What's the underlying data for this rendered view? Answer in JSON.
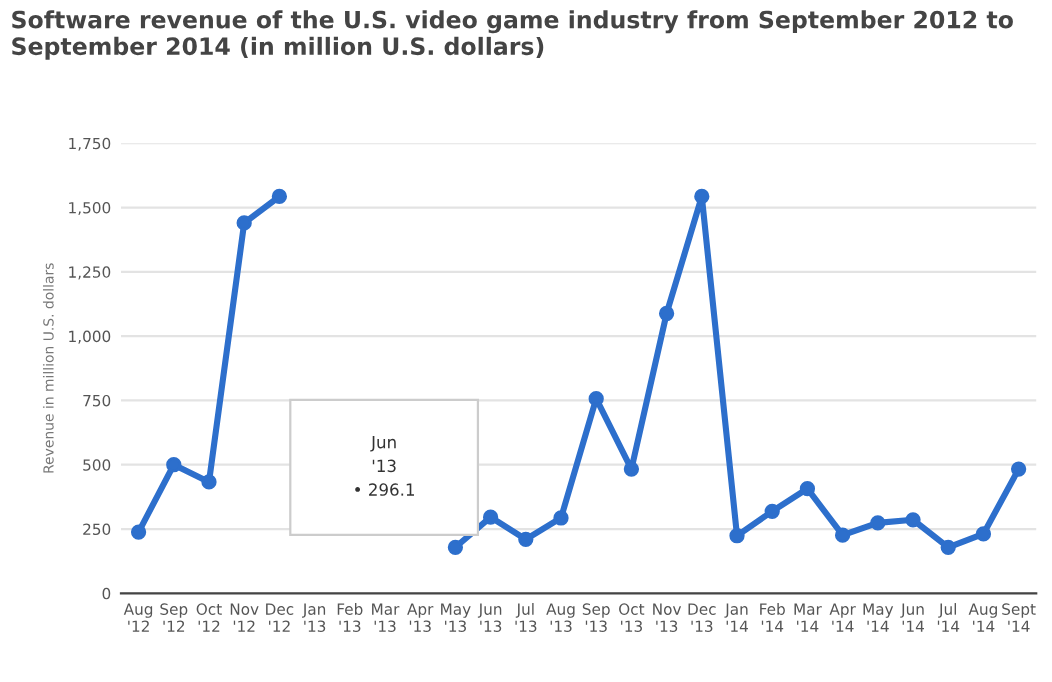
{
  "chart_data": {
    "type": "line",
    "title": "Software revenue of the U.S. video game industry from September 2012 to September 2014 (in million U.S. dollars)",
    "ylabel": "Revenue in million U.S. dollars",
    "categories": [
      "Aug\n'12",
      "Sep\n'12",
      "Oct\n'12",
      "Nov\n'12",
      "Dec\n'12",
      "Jan\n'13",
      "Feb\n'13",
      "Mar\n'13",
      "Apr\n'13",
      "May\n'13",
      "Jun\n'13",
      "Jul\n'13",
      "Aug\n'13",
      "Sep\n'13",
      "Oct\n'13",
      "Nov\n'13",
      "Dec\n'13",
      "Jan\n'14",
      "Feb\n'14",
      "Mar\n'14",
      "Apr\n'14",
      "May\n'14",
      "Jun\n'14",
      "Jul\n'14",
      "Aug\n'14",
      "Sept\n'14"
    ],
    "series": [
      {
        "color": "#2d6fcc",
        "values": [
          238,
          500,
          433,
          1440,
          1543,
          null,
          null,
          null,
          null,
          179,
          296.1,
          210,
          293,
          757,
          483,
          1088,
          1543,
          224,
          319,
          407,
          226,
          274,
          286,
          179,
          231,
          483
        ]
      }
    ],
    "annotations": [
      "Jun\n'13\n• 296.1"
    ],
    "ylim": [
      0,
      1750
    ],
    "yticks": [
      0,
      250,
      500,
      750,
      {
        "value": 1000,
        "label": "1,000"
      },
      {
        "value": 1250,
        "label": "1,250"
      },
      {
        "value": 1500,
        "label": "1,500"
      },
      {
        "value": 1750,
        "label": "1,750"
      }
    ],
    "grid": "y",
    "marker": "circle",
    "line_style": "solid",
    "legend": false
  }
}
